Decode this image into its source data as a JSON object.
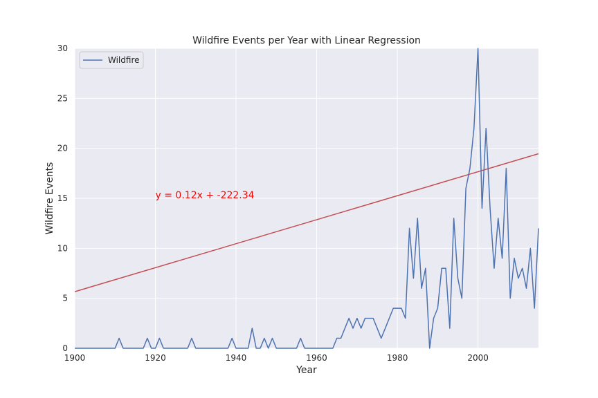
{
  "chart_data": {
    "type": "line",
    "title": "Wildfire Events per Year with Linear Regression",
    "xlabel": "Year",
    "ylabel": "Wildfire Events",
    "xlim": [
      1900,
      2015
    ],
    "ylim": [
      0,
      30
    ],
    "xticks": [
      1900,
      1920,
      1940,
      1960,
      1980,
      2000
    ],
    "yticks": [
      0,
      5,
      10,
      15,
      20,
      25,
      30
    ],
    "grid": true,
    "legend_position": "top-left",
    "background_color": "#eaeaf2",
    "series": [
      {
        "name": "Wildfire",
        "color": "#4c72b0",
        "x": [
          1900,
          1901,
          1902,
          1903,
          1904,
          1905,
          1906,
          1907,
          1908,
          1909,
          1910,
          1911,
          1912,
          1913,
          1914,
          1915,
          1916,
          1917,
          1918,
          1919,
          1920,
          1921,
          1922,
          1923,
          1924,
          1925,
          1926,
          1927,
          1928,
          1929,
          1930,
          1931,
          1932,
          1933,
          1934,
          1935,
          1936,
          1937,
          1938,
          1939,
          1940,
          1941,
          1942,
          1943,
          1944,
          1945,
          1946,
          1947,
          1948,
          1949,
          1950,
          1951,
          1952,
          1953,
          1954,
          1955,
          1956,
          1957,
          1958,
          1959,
          1960,
          1961,
          1962,
          1963,
          1964,
          1965,
          1966,
          1967,
          1968,
          1969,
          1970,
          1971,
          1972,
          1973,
          1974,
          1975,
          1976,
          1977,
          1978,
          1979,
          1980,
          1981,
          1982,
          1983,
          1984,
          1985,
          1986,
          1987,
          1988,
          1989,
          1990,
          1991,
          1992,
          1993,
          1994,
          1995,
          1996,
          1997,
          1998,
          1999,
          2000,
          2001,
          2002,
          2003,
          2004,
          2005,
          2006,
          2007,
          2008,
          2009,
          2010,
          2011,
          2012,
          2013,
          2014,
          2015
        ],
        "y": [
          0,
          0,
          0,
          0,
          0,
          0,
          0,
          0,
          0,
          0,
          0,
          1,
          0,
          0,
          0,
          0,
          0,
          0,
          1,
          0,
          0,
          1,
          0,
          0,
          0,
          0,
          0,
          0,
          0,
          1,
          0,
          0,
          0,
          0,
          0,
          0,
          0,
          0,
          0,
          1,
          0,
          0,
          0,
          0,
          2,
          0,
          0,
          1,
          0,
          1,
          0,
          0,
          0,
          0,
          0,
          0,
          1,
          0,
          0,
          0,
          0,
          0,
          0,
          0,
          0,
          1,
          1,
          2,
          3,
          2,
          3,
          2,
          3,
          3,
          3,
          2,
          1,
          2,
          3,
          4,
          4,
          4,
          3,
          12,
          7,
          13,
          6,
          8,
          0,
          3,
          4,
          8,
          8,
          2,
          13,
          7,
          5,
          16,
          18,
          22,
          30,
          14,
          22,
          14,
          8,
          13,
          9,
          18,
          5,
          9,
          7,
          8,
          6,
          10,
          4,
          12
        ]
      }
    ],
    "regression": {
      "slope": 0.12,
      "intercept": -222.34,
      "color": "#c44e52",
      "label": "y = 0.12x + -222.34",
      "label_color": "#ff0000",
      "label_x": 1920,
      "label_y": 15
    }
  }
}
